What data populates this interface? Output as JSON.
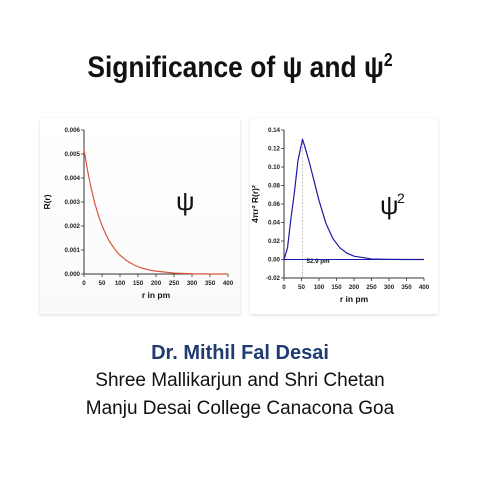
{
  "slide": {
    "title_main": "Significance of ψ and ψ",
    "title_sup": "2",
    "author": "Dr. Mithil Fal Desai",
    "institution_line1": "Shree Mallikarjun and Shri Chetan",
    "institution_line2": "Manju Desai College Canacona Goa"
  },
  "chart_data": [
    {
      "type": "line",
      "title": "ψ",
      "title_sup": "",
      "xlabel": "r in pm",
      "ylabel": "R(r)",
      "xlim": [
        0,
        400
      ],
      "ylim": [
        0,
        0.006
      ],
      "xticks": [
        "0",
        "50",
        "100",
        "150",
        "200",
        "250",
        "300",
        "350",
        "400"
      ],
      "yticks": [
        "0.000",
        "0.001",
        "0.002",
        "0.003",
        "0.004",
        "0.005",
        "0.006"
      ],
      "line_color": "#d9553a",
      "series": [
        {
          "x": [
            0,
            10,
            20,
            30,
            40,
            50,
            60,
            70,
            80,
            90,
            100,
            120,
            140,
            160,
            180,
            200,
            250,
            300,
            350,
            400
          ],
          "y": [
            0.0052,
            0.0043,
            0.00356,
            0.00295,
            0.00244,
            0.00202,
            0.00167,
            0.00138,
            0.00115,
            0.00095,
            0.00078,
            0.00054,
            0.00037,
            0.00025,
            0.00017,
            0.00012,
            4e-05,
            1e-05,
            0.0,
            0.0
          ]
        }
      ]
    },
    {
      "type": "line",
      "title": "ψ",
      "title_sup": "2",
      "xlabel": "r in pm",
      "ylabel": "4πr² R(r)²",
      "xlim": [
        0,
        400
      ],
      "ylim": [
        -0.02,
        0.14
      ],
      "xticks": [
        "0",
        "50",
        "100",
        "150",
        "200",
        "250",
        "300",
        "350",
        "400"
      ],
      "yticks": [
        "-0.02",
        "0.00",
        "0.02",
        "0.04",
        "0.06",
        "0.08",
        "0.10",
        "0.12",
        "0.14"
      ],
      "line_color": "#1a1aa8",
      "annotation": {
        "text": "52.9 pm",
        "x": 52.9
      },
      "series": [
        {
          "x": [
            0,
            10,
            20,
            30,
            40,
            52.9,
            60,
            70,
            80,
            90,
            100,
            120,
            140,
            160,
            180,
            200,
            250,
            300,
            350,
            400
          ],
          "y": [
            0.0,
            0.0125,
            0.0449,
            0.0733,
            0.1072,
            0.13,
            0.1214,
            0.1082,
            0.0938,
            0.0787,
            0.0639,
            0.0388,
            0.0225,
            0.0125,
            0.0068,
            0.0036,
            0.0006,
            0.0001,
            0.0,
            0.0
          ]
        }
      ]
    }
  ]
}
